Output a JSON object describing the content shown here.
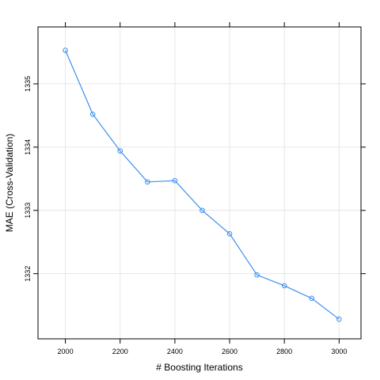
{
  "chart_data": {
    "type": "line",
    "title": "",
    "xlabel": "# Boosting Iterations",
    "ylabel": "MAE (Cross-Validation)",
    "xlim": [
      1900,
      3080
    ],
    "ylim": [
      1330.97,
      1335.9
    ],
    "xticks": [
      2000,
      2200,
      2400,
      2600,
      2800,
      3000
    ],
    "yticks": [
      1332,
      1333,
      1334,
      1335
    ],
    "grid": true,
    "series": [
      {
        "x": [
          2000,
          2100,
          2200,
          2300,
          2400,
          2500,
          2600,
          2700,
          2800,
          2900,
          3000
        ],
        "y": [
          1335.53,
          1334.52,
          1333.94,
          1333.45,
          1333.47,
          1333.0,
          1332.63,
          1331.98,
          1331.81,
          1331.61,
          1331.28
        ]
      }
    ],
    "colors": {
      "line": "#3d8fef",
      "grid": "#e6e6e6",
      "axis": "#000000"
    }
  }
}
